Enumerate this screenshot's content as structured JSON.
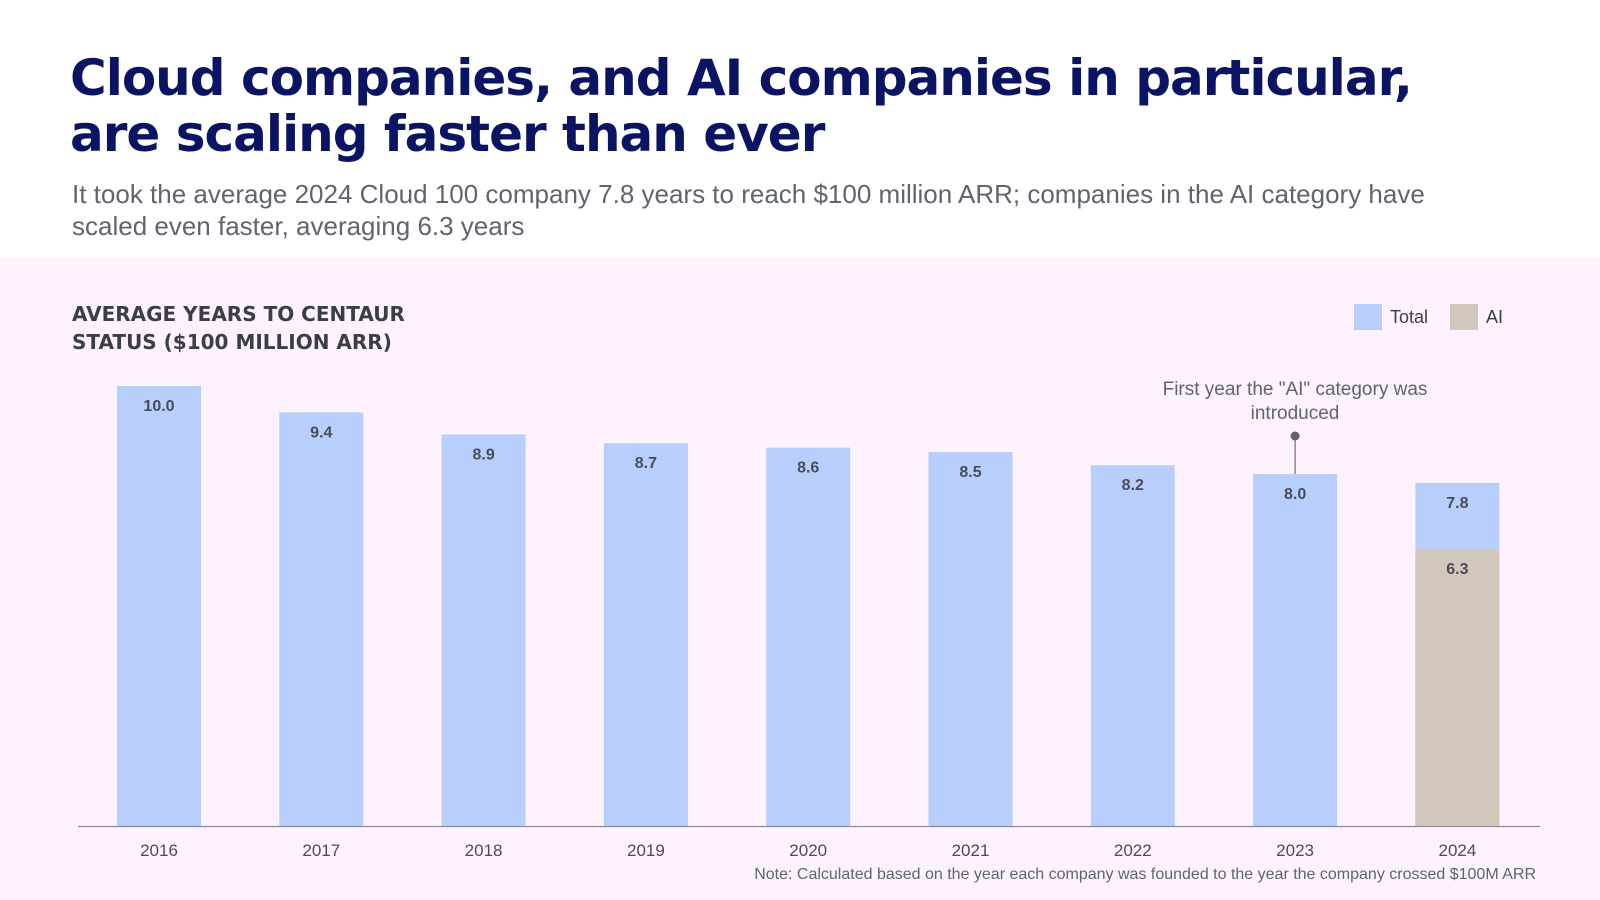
{
  "header": {
    "title": "Cloud companies, and AI companies in particular, are scaling faster than ever",
    "subtitle": "It took the average 2024 Cloud 100 company 7.8 years to reach $100 million ARR; companies in the AI category have scaled even faster, averaging 6.3 years"
  },
  "colors": {
    "total": "#b8cffd",
    "ai": "#d3c8bc",
    "title": "#0b1463",
    "panel": "#fdf2fd",
    "axis": "#8a8c96",
    "label": "#4a4d58"
  },
  "chart_data": {
    "type": "bar",
    "title": "AVERAGE YEARS TO CENTAUR STATUS ($100 MILLION ARR)",
    "categories": [
      "2016",
      "2017",
      "2018",
      "2019",
      "2020",
      "2021",
      "2022",
      "2023",
      "2024"
    ],
    "series": [
      {
        "name": "Total",
        "values": [
          10.0,
          9.4,
          8.9,
          8.7,
          8.6,
          8.5,
          8.2,
          8.0,
          7.8
        ]
      },
      {
        "name": "AI",
        "values": [
          null,
          null,
          null,
          null,
          null,
          null,
          null,
          null,
          6.3
        ]
      }
    ],
    "value_labels": [
      "10.0",
      "9.4",
      "8.9",
      "8.7",
      "8.6",
      "8.5",
      "8.2",
      "8.0",
      "7.8"
    ],
    "ai_value_label": "6.3",
    "legend": [
      "Total",
      "AI"
    ],
    "legend_position": "top-right",
    "ylim": [
      0,
      10.0
    ],
    "annotation": {
      "category": "2023",
      "text": "First year the \"AI\" category was introduced"
    },
    "note": "Note: Calculated based on the year each company was founded to the year the company crossed $100M ARR"
  }
}
